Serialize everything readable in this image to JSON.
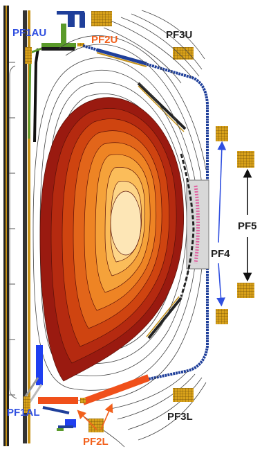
{
  "colors": {
    "blue_label": "#2f4fe0",
    "orange_label": "#f2601c",
    "black_label": "#222222",
    "coil_gold": "#d9a21a",
    "coil_grid": "#6b4a08",
    "plate_blue": "#1f3f9a",
    "coil_blue_bar": "#1f3ff0",
    "coil_orange_bar": "#f0501a",
    "wall_black": "#1a1a1a",
    "flux_line": "#444444",
    "pink_antenna": "#e060a0",
    "plasma_levels": [
      "#9a1a10",
      "#b52a10",
      "#cf4410",
      "#e2651a",
      "#ee8424",
      "#f5a23a",
      "#fbbd5a",
      "#fdd588",
      "#fde6b6"
    ]
  },
  "labels": {
    "pf1au": "PF1AU",
    "pf2u": "PF2U",
    "pf3u": "PF3U",
    "pf4": "PF4",
    "pf5": "PF5",
    "pf1al": "PF1AL",
    "pf2l": "PF2L",
    "pf3l": "PF3L"
  },
  "icons": {
    "arrow": "arrow-icon",
    "coil": "coil-grid-icon"
  }
}
